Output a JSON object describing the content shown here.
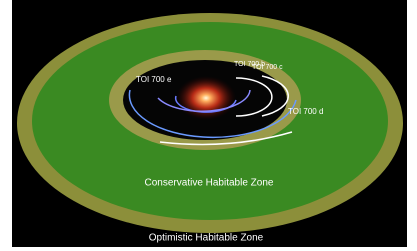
{
  "planets": [
    {
      "label": "TOI 700 e"
    },
    {
      "label": "TOI 700 b"
    },
    {
      "label": "TOI 700 c"
    },
    {
      "label": "TOI 700 d"
    }
  ],
  "zones": {
    "conservative": "Conservative Habitable Zone",
    "optimistic": "Optimistic Habitable Zone"
  }
}
